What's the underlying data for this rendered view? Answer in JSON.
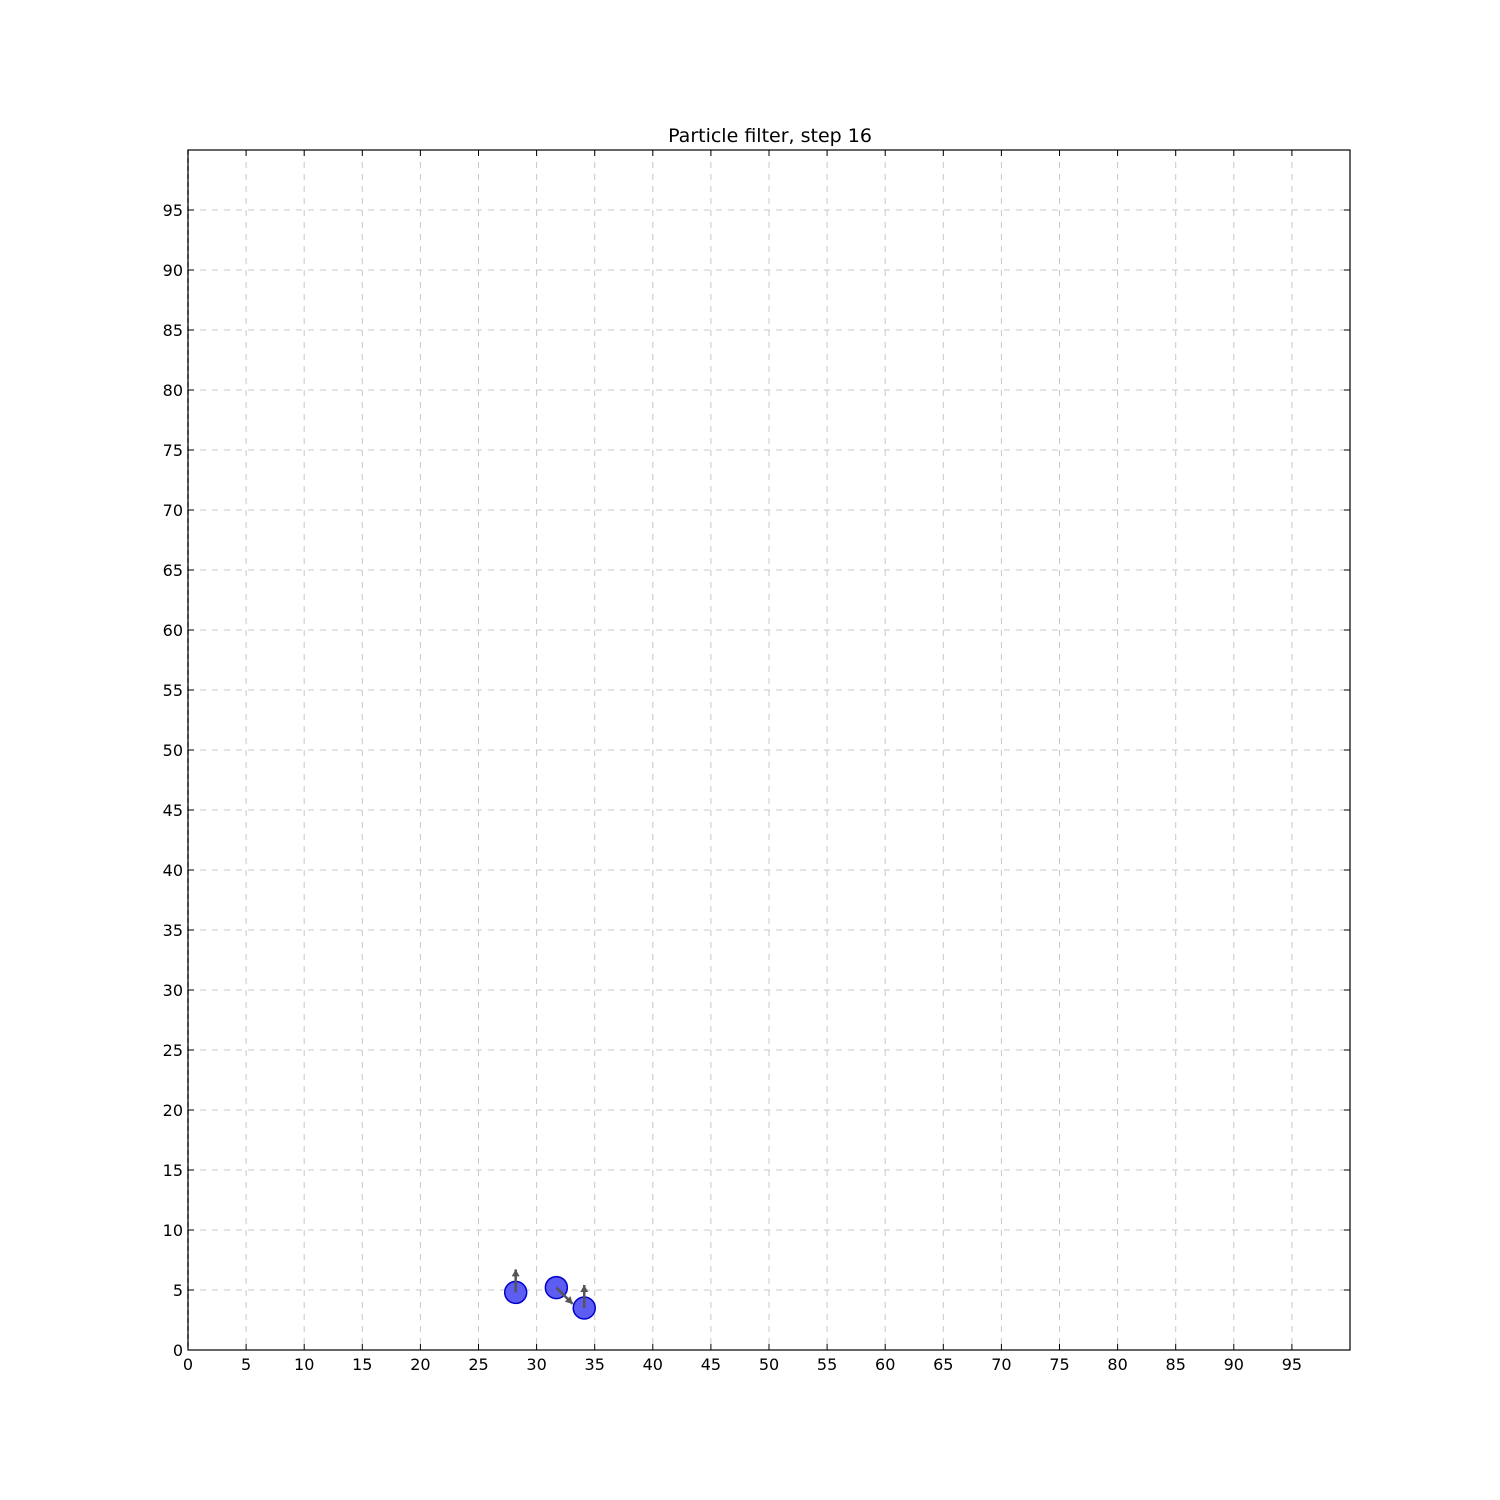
{
  "chart_data": {
    "type": "scatter",
    "title": "Particle filter, step 16",
    "xlabel": "",
    "ylabel": "",
    "xlim": [
      0,
      100
    ],
    "ylim": [
      0,
      100
    ],
    "x_ticks": [
      0,
      5,
      10,
      15,
      20,
      25,
      30,
      35,
      40,
      45,
      50,
      55,
      60,
      65,
      70,
      75,
      80,
      85,
      90,
      95
    ],
    "y_ticks": [
      0,
      5,
      10,
      15,
      20,
      25,
      30,
      35,
      40,
      45,
      50,
      55,
      60,
      65,
      70,
      75,
      80,
      85,
      90,
      95
    ],
    "grid": true,
    "particles": [
      {
        "x": 28.2,
        "y": 4.8,
        "heading_deg": 90
      },
      {
        "x": 31.7,
        "y": 5.2,
        "heading_deg": -45
      },
      {
        "x": 34.1,
        "y": 3.5,
        "heading_deg": 90
      }
    ],
    "colors": {
      "particle_fill": "#4b4bf2",
      "particle_edge": "#0000cc",
      "arrow": "#555555",
      "grid": "#c8c8c8",
      "axes": "#000000"
    }
  }
}
